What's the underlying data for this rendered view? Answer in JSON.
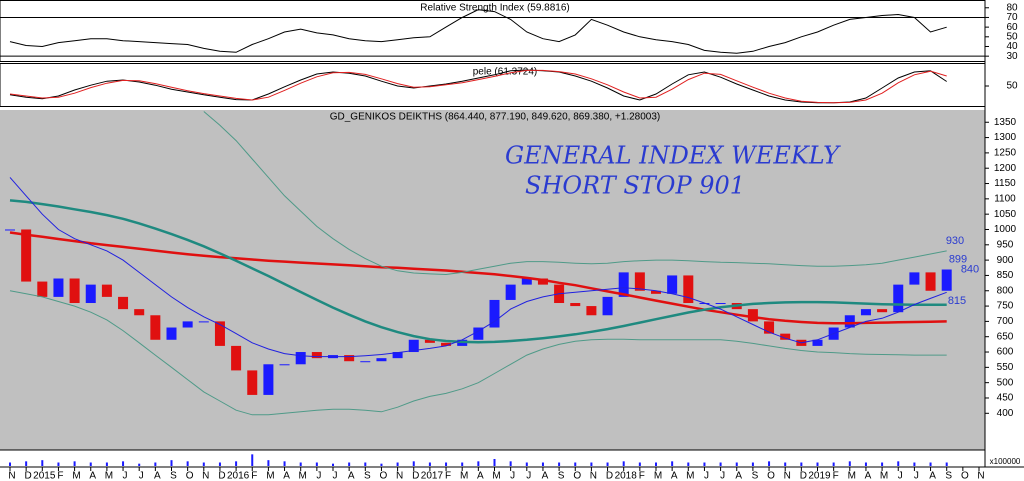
{
  "chart_data": [
    {
      "type": "line",
      "title": "Relative Strength Index (59.8816)",
      "ylim": [
        25,
        87
      ],
      "yticks": [
        80,
        70,
        60,
        50,
        40,
        30
      ],
      "levels": [
        70,
        30
      ],
      "series": [
        {
          "color": "#000000",
          "values": [
            45,
            41,
            40,
            44,
            46,
            48,
            48,
            46,
            45,
            44,
            43,
            42,
            38,
            35,
            34,
            42,
            48,
            55,
            58,
            54,
            52,
            48,
            46,
            45,
            47,
            49,
            50,
            60,
            70,
            78,
            76,
            68,
            55,
            48,
            45,
            52,
            68,
            62,
            55,
            50,
            47,
            45,
            42,
            36,
            34,
            33,
            35,
            40,
            44,
            50,
            55,
            62,
            68,
            70,
            72,
            73,
            70,
            55,
            59.8816,
            null,
            null
          ]
        }
      ]
    },
    {
      "type": "line",
      "title": "pele (61.3724)",
      "ylim": [
        0,
        100
      ],
      "yticks": [
        50
      ],
      "series": [
        {
          "color": "#000000",
          "values": [
            28,
            22,
            18,
            25,
            40,
            52,
            62,
            65,
            60,
            52,
            42,
            35,
            28,
            22,
            16,
            15,
            30,
            48,
            65,
            80,
            85,
            82,
            75,
            62,
            50,
            45,
            50,
            55,
            62,
            70,
            78,
            88,
            90,
            88,
            85,
            75,
            62,
            45,
            25,
            15,
            30,
            55,
            78,
            85,
            72,
            55,
            40,
            25,
            15,
            10,
            8,
            8,
            10,
            20,
            45,
            70,
            85,
            88,
            61.3724,
            null,
            null
          ]
        },
        {
          "color": "#e02020",
          "values": [
            30,
            25,
            20,
            22,
            32,
            46,
            57,
            64,
            63,
            56,
            47,
            38,
            31,
            25,
            19,
            15,
            22,
            39,
            57,
            73,
            83,
            84,
            79,
            68,
            56,
            47,
            48,
            53,
            58,
            66,
            74,
            83,
            89,
            89,
            86,
            80,
            68,
            53,
            35,
            20,
            22,
            42,
            66,
            82,
            79,
            63,
            47,
            32,
            20,
            12,
            9,
            8,
            9,
            15,
            32,
            58,
            78,
            87,
            75,
            null,
            null
          ]
        }
      ]
    },
    {
      "type": "candlestick",
      "title": "GD_GENIKOS DEIKTHS (864.440, 877.190, 849.620, 869.380, +1.28003)",
      "annotations": [
        "GENERAL INDEX WEEKLY",
        "SHORT STOP 901"
      ],
      "level_labels": [
        930,
        899,
        840,
        815
      ],
      "up_color": "#1a1aff",
      "down_color": "#e01010",
      "categories": [
        "N",
        "D",
        "2015",
        "F",
        "M",
        "A",
        "M",
        "J",
        "J",
        "A",
        "S",
        "O",
        "N",
        "D",
        "2016",
        "F",
        "M",
        "A",
        "M",
        "J",
        "J",
        "A",
        "S",
        "O",
        "N",
        "D",
        "2017",
        "F",
        "M",
        "A",
        "M",
        "J",
        "J",
        "A",
        "S",
        "O",
        "N",
        "D",
        "2018",
        "F",
        "M",
        "A",
        "M",
        "J",
        "J",
        "A",
        "S",
        "O",
        "N",
        "D",
        "2019",
        "F",
        "M",
        "A",
        "M",
        "J",
        "J",
        "A",
        "S",
        "O",
        "N"
      ],
      "values": [
        1000,
        830,
        780,
        840,
        760,
        820,
        780,
        740,
        720,
        640,
        680,
        700,
        700,
        620,
        540,
        460,
        560,
        560,
        600,
        580,
        590,
        570,
        570,
        580,
        600,
        640,
        630,
        620,
        640,
        680,
        770,
        820,
        840,
        820,
        760,
        750,
        720,
        780,
        860,
        800,
        790,
        850,
        760,
        760,
        760,
        740,
        700,
        660,
        640,
        620,
        640,
        680,
        720,
        740,
        730,
        820,
        860,
        800,
        869.38,
        null,
        null
      ],
      "ylim": [
        290,
        1390
      ],
      "yticks": [
        1350,
        1300,
        1250,
        1200,
        1150,
        1100,
        1050,
        1000,
        950,
        900,
        850,
        800,
        750,
        700,
        650,
        600,
        550,
        500,
        450,
        400
      ],
      "series": [
        {
          "color": "#e01010",
          "width": 2.5,
          "values": [
            990,
            983,
            976,
            969,
            962,
            955,
            949,
            943,
            937,
            931,
            925,
            919,
            914,
            910,
            906,
            902,
            898,
            895,
            892,
            889,
            886,
            883,
            880,
            877,
            875,
            872,
            869,
            866,
            862,
            858,
            854,
            848,
            842,
            835,
            826,
            818,
            808,
            798,
            788,
            778,
            768,
            758,
            748,
            738,
            730,
            722,
            714,
            707,
            702,
            698,
            695,
            694,
            694,
            695,
            696,
            697,
            698,
            699,
            700,
            null,
            null
          ]
        },
        {
          "color": "#1f8a80",
          "width": 2.5,
          "values": [
            1095,
            1090,
            1083,
            1075,
            1066,
            1057,
            1047,
            1035,
            1020,
            1003,
            985,
            966,
            945,
            922,
            898,
            873,
            848,
            822,
            796,
            770,
            745,
            722,
            700,
            681,
            665,
            652,
            642,
            636,
            633,
            632,
            633,
            636,
            640,
            645,
            651,
            658,
            666,
            675,
            685,
            696,
            707,
            718,
            729,
            738,
            746,
            752,
            757,
            760,
            762,
            763,
            763,
            762,
            760,
            758,
            756,
            755,
            754,
            754,
            754,
            null,
            null
          ]
        },
        {
          "color": "#2020e0",
          "width": 1,
          "values": [
            1170,
            1110,
            1050,
            1000,
            970,
            950,
            930,
            900,
            860,
            820,
            780,
            745,
            715,
            690,
            660,
            630,
            610,
            595,
            588,
            585,
            585,
            585,
            588,
            592,
            598,
            605,
            612,
            620,
            640,
            668,
            700,
            740,
            765,
            780,
            790,
            795,
            800,
            805,
            810,
            806,
            800,
            790,
            778,
            760,
            740,
            715,
            690,
            665,
            645,
            630,
            640,
            660,
            680,
            700,
            710,
            730,
            755,
            775,
            795,
            null,
            null
          ]
        },
        {
          "color": "#4f9a88",
          "width": 1,
          "values": [
            null,
            null,
            null,
            null,
            null,
            null,
            null,
            null,
            null,
            null,
            null,
            null,
            1385,
            1340,
            1290,
            1230,
            1170,
            1110,
            1060,
            1010,
            970,
            935,
            905,
            880,
            865,
            858,
            855,
            853,
            860,
            870,
            880,
            890,
            895,
            895,
            893,
            890,
            888,
            890,
            895,
            898,
            900,
            900,
            898,
            895,
            893,
            892,
            890,
            888,
            885,
            882,
            880,
            880,
            882,
            885,
            890,
            900,
            910,
            920,
            930,
            null,
            null
          ]
        },
        {
          "color": "#4f9a88",
          "width": 1,
          "values": [
            800,
            790,
            780,
            765,
            750,
            730,
            705,
            670,
            630,
            590,
            550,
            510,
            470,
            440,
            410,
            395,
            395,
            400,
            405,
            410,
            413,
            413,
            410,
            405,
            420,
            440,
            455,
            465,
            480,
            500,
            530,
            560,
            590,
            610,
            625,
            635,
            640,
            642,
            642,
            640,
            640,
            640,
            640,
            640,
            640,
            635,
            628,
            620,
            612,
            605,
            600,
            598,
            595,
            593,
            592,
            591,
            590,
            590,
            590,
            null,
            null
          ]
        }
      ]
    },
    {
      "type": "bar",
      "ylabel": "x100000",
      "color": "#1a1aff",
      "ylim": [
        0,
        12
      ],
      "values": [
        3,
        4,
        5,
        3,
        4,
        3,
        3,
        4,
        2,
        3,
        5,
        4,
        3,
        3,
        4,
        10,
        5,
        4,
        3,
        3,
        2,
        3,
        3,
        2,
        3,
        4,
        3,
        3,
        3,
        4,
        6,
        4,
        3,
        3,
        3,
        3,
        3,
        3,
        4,
        3,
        3,
        4,
        3,
        3,
        3,
        3,
        3,
        4,
        3,
        3,
        3,
        3,
        4,
        3,
        3,
        4,
        3,
        3,
        3,
        null,
        null
      ]
    }
  ]
}
